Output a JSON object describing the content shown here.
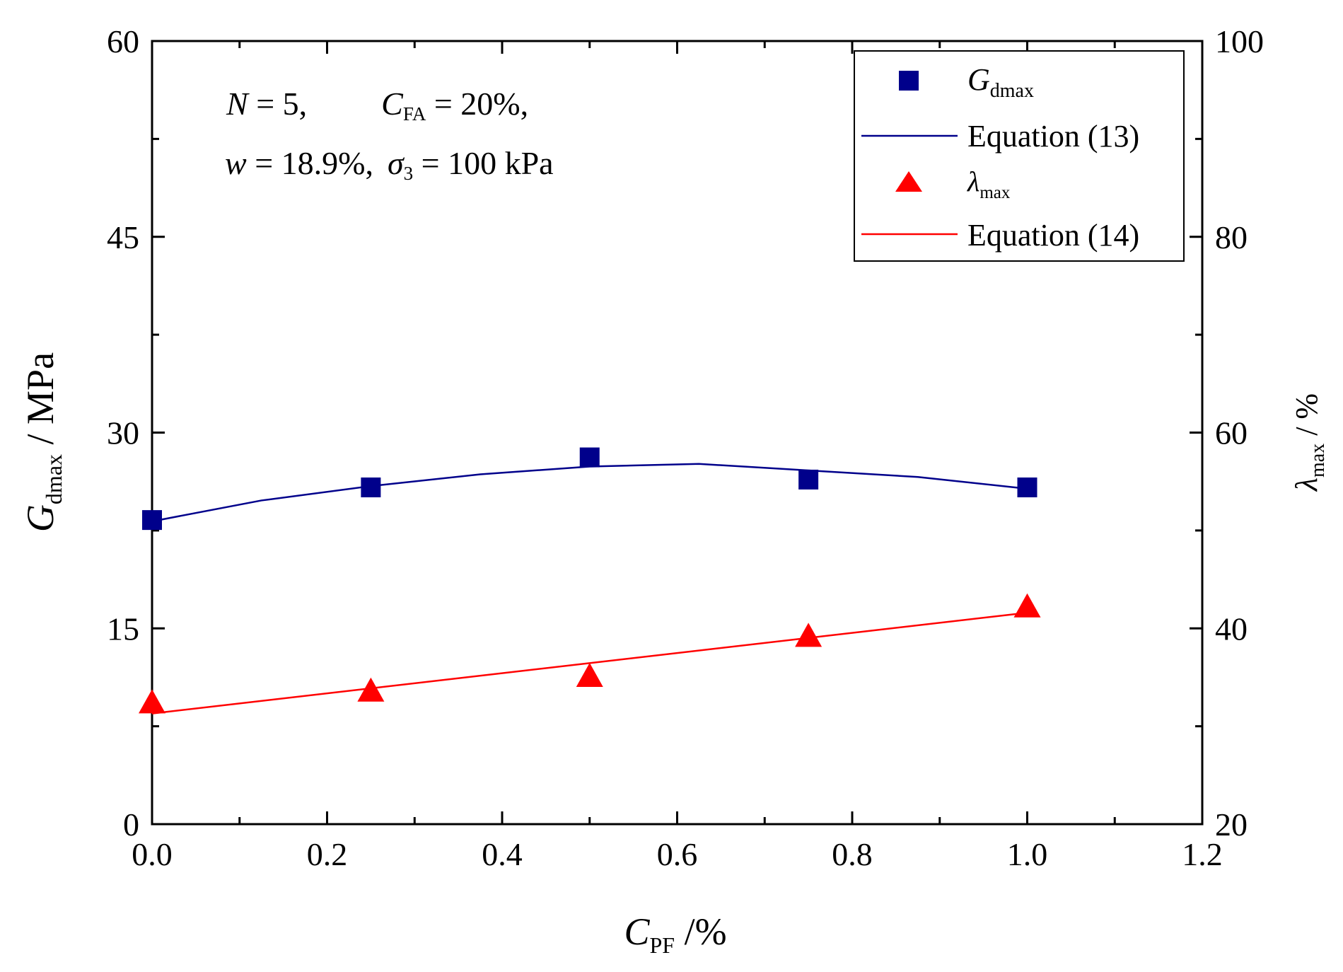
{
  "chart_data": {
    "type": "scatter",
    "x_label": {
      "main": "C",
      "sub": "PF",
      "suffix": " /%"
    },
    "y_left_label": {
      "main": "G",
      "sub": "dmax",
      "suffix": " / MPa"
    },
    "y_right_label": {
      "main": "λ",
      "sub": "max",
      "suffix": " / %"
    },
    "x_range": [
      0,
      1.2
    ],
    "x_ticks": [
      "0.0",
      "0.2",
      "0.4",
      "0.6",
      "0.8",
      "1.0",
      "1.2"
    ],
    "y_left_range": [
      0,
      60
    ],
    "y_left_ticks": [
      "0",
      "15",
      "30",
      "45",
      "60"
    ],
    "y_right_range": [
      20,
      100
    ],
    "y_right_ticks": [
      "20",
      "40",
      "60",
      "80",
      "100"
    ],
    "annotation": {
      "line1": {
        "n_var": "N",
        "n_val": " = 5,",
        "c_var": "C",
        "c_sub": "FA",
        "c_val": " = 20%,"
      },
      "line2": {
        "w_var": "w",
        "w_val": " = 18.9%,",
        "s_var": "σ",
        "s_sub": "3",
        "s_val": " = 100 kPa"
      }
    },
    "series": [
      {
        "name": "Gdmax",
        "legend_main": "G",
        "legend_sub": "dmax",
        "axis": "left",
        "marker": "square",
        "color": "#00008B",
        "x": [
          0.0,
          0.25,
          0.5,
          0.75,
          1.0
        ],
        "y": [
          23.3,
          25.8,
          28.1,
          26.4,
          25.8
        ]
      },
      {
        "name": "Equation (13)",
        "legend_label": "Equation (13)",
        "axis": "left",
        "line": true,
        "color": "#00008B",
        "x": [
          0.0,
          0.125,
          0.25,
          0.375,
          0.5,
          0.625,
          0.75,
          0.875,
          1.0
        ],
        "y": [
          23.2,
          24.8,
          25.9,
          26.8,
          27.4,
          27.6,
          27.1,
          26.6,
          25.7
        ]
      },
      {
        "name": "λmax",
        "legend_main": "λ",
        "legend_sub": "max",
        "axis": "right",
        "marker": "triangle",
        "color": "#FF0000",
        "x": [
          0.0,
          0.25,
          0.5,
          0.75,
          1.0
        ],
        "y": [
          32.4,
          33.6,
          35.1,
          39.2,
          42.2
        ]
      },
      {
        "name": "Equation (14)",
        "legend_label": "Equation (14)",
        "axis": "right",
        "line": true,
        "color": "#FF0000",
        "x": [
          0.0,
          1.0
        ],
        "y": [
          31.3,
          41.6
        ]
      }
    ],
    "legend_position": "top-right"
  }
}
